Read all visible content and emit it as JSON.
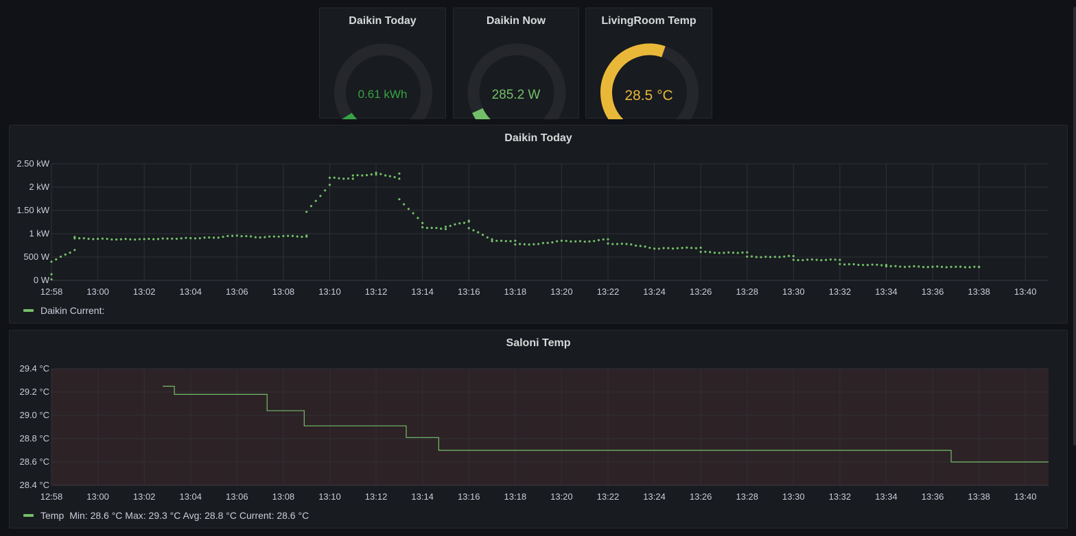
{
  "gauges": [
    {
      "title": "Daikin Today",
      "value_text": "0.61 kWh",
      "fraction": 0.045,
      "color": "#37a345"
    },
    {
      "title": "Daikin Now",
      "value_text": "285.2 W",
      "fraction": 0.075,
      "color": "#73bf69"
    },
    {
      "title": "LivingRoom Temp",
      "value_text": "28.5 °C",
      "fraction": 0.57,
      "color": "#eab839"
    }
  ],
  "chart_data": [
    {
      "type": "scatter",
      "title": "Daikin Today",
      "y_unit": "W",
      "ylim": [
        0,
        2500
      ],
      "y_ticks": [
        0,
        500,
        1000,
        1500,
        2000,
        2500
      ],
      "y_tick_labels": [
        "0 W",
        "500 W",
        "1 kW",
        "1.50 kW",
        "2 kW",
        "2.50 kW"
      ],
      "x_tick_labels": [
        "12:58",
        "13:00",
        "13:02",
        "13:04",
        "13:06",
        "13:08",
        "13:10",
        "13:12",
        "13:14",
        "13:16",
        "13:18",
        "13:20",
        "13:22",
        "13:24",
        "13:26",
        "13:28",
        "13:30",
        "13:32",
        "13:34",
        "13:36",
        "13:38",
        "13:40"
      ],
      "xlim": [
        "12:58",
        "13:41"
      ],
      "grid": true,
      "series": [
        {
          "name": "Daikin  Current:",
          "color": "#73bf69",
          "points": [
            [
              "12:58",
              20
            ],
            [
              "12:58",
              130
            ],
            [
              "12:58",
              400
            ],
            [
              "12:59",
              650
            ],
            [
              "12:59",
              930
            ],
            [
              "12:59",
              900
            ],
            [
              "13:00",
              890
            ],
            [
              "13:01",
              880
            ],
            [
              "13:02",
              885
            ],
            [
              "13:03",
              895
            ],
            [
              "13:04",
              905
            ],
            [
              "13:05",
              915
            ],
            [
              "13:06",
              960
            ],
            [
              "13:07",
              920
            ],
            [
              "13:08",
              950
            ],
            [
              "13:09",
              940
            ],
            [
              "13:09",
              960
            ],
            [
              "13:09",
              1470
            ],
            [
              "13:10",
              2050
            ],
            [
              "13:10",
              2200
            ],
            [
              "13:11",
              2180
            ],
            [
              "13:11",
              2250
            ],
            [
              "13:12",
              2270
            ],
            [
              "13:12",
              2310
            ],
            [
              "13:13",
              2180
            ],
            [
              "13:13",
              2290
            ],
            [
              "13:13",
              1740
            ],
            [
              "13:14",
              1230
            ],
            [
              "13:14",
              1140
            ],
            [
              "13:15",
              1100
            ],
            [
              "13:15",
              1150
            ],
            [
              "13:16",
              1260
            ],
            [
              "13:16",
              1280
            ],
            [
              "13:16",
              1120
            ],
            [
              "13:17",
              880
            ],
            [
              "13:17",
              840
            ],
            [
              "13:18",
              850
            ],
            [
              "13:18",
              770
            ],
            [
              "13:19",
              780
            ],
            [
              "13:20",
              850
            ],
            [
              "13:21",
              830
            ],
            [
              "13:22",
              880
            ],
            [
              "13:22",
              790
            ],
            [
              "13:23",
              770
            ],
            [
              "13:24",
              680
            ],
            [
              "13:25",
              690
            ],
            [
              "13:26",
              700
            ],
            [
              "13:26",
              610
            ],
            [
              "13:27",
              590
            ],
            [
              "13:28",
              600
            ],
            [
              "13:28",
              510
            ],
            [
              "13:29",
              500
            ],
            [
              "13:30",
              520
            ],
            [
              "13:30",
              440
            ],
            [
              "13:31",
              440
            ],
            [
              "13:32",
              440
            ],
            [
              "13:32",
              350
            ],
            [
              "13:33",
              330
            ],
            [
              "13:34",
              330
            ],
            [
              "13:34",
              300
            ],
            [
              "13:35",
              295
            ],
            [
              "13:36",
              290
            ],
            [
              "13:37",
              290
            ],
            [
              "13:38",
              285
            ],
            [
              "13:38",
              290
            ]
          ]
        }
      ]
    },
    {
      "type": "line",
      "title": "Saloni Temp",
      "y_unit": "°C",
      "ylim": [
        28.4,
        29.4
      ],
      "y_ticks": [
        28.4,
        28.6,
        28.8,
        29.0,
        29.2,
        29.4
      ],
      "y_tick_labels": [
        "28.4 °C",
        "28.6 °C",
        "28.8 °C",
        "29.0 °C",
        "29.2 °C",
        "29.4 °C"
      ],
      "x_tick_labels": [
        "12:58",
        "13:00",
        "13:02",
        "13:04",
        "13:06",
        "13:08",
        "13:10",
        "13:12",
        "13:14",
        "13:16",
        "13:18",
        "13:20",
        "13:22",
        "13:24",
        "13:26",
        "13:28",
        "13:30",
        "13:32",
        "13:34",
        "13:36",
        "13:38",
        "13:40"
      ],
      "xlim": [
        "12:58",
        "13:41"
      ],
      "grid": true,
      "series": [
        {
          "name": "Temp",
          "color": "#73bf69",
          "points": [
            [
              "13:02.8",
              29.25
            ],
            [
              "13:03.3",
              29.25
            ],
            [
              "13:03.3",
              29.18
            ],
            [
              "13:07.3",
              29.18
            ],
            [
              "13:07.3",
              29.04
            ],
            [
              "13:08.9",
              29.04
            ],
            [
              "13:08.9",
              28.91
            ],
            [
              "13:13.3",
              28.91
            ],
            [
              "13:13.3",
              28.81
            ],
            [
              "13:14.7",
              28.81
            ],
            [
              "13:14.7",
              28.7
            ],
            [
              "13:36.8",
              28.7
            ],
            [
              "13:36.8",
              28.6
            ],
            [
              "13:41",
              28.6
            ]
          ],
          "legend_stats": "Min: 28.6 °C  Max: 29.3 °C  Avg: 28.8 °C  Current: 28.6 °C"
        }
      ]
    }
  ]
}
